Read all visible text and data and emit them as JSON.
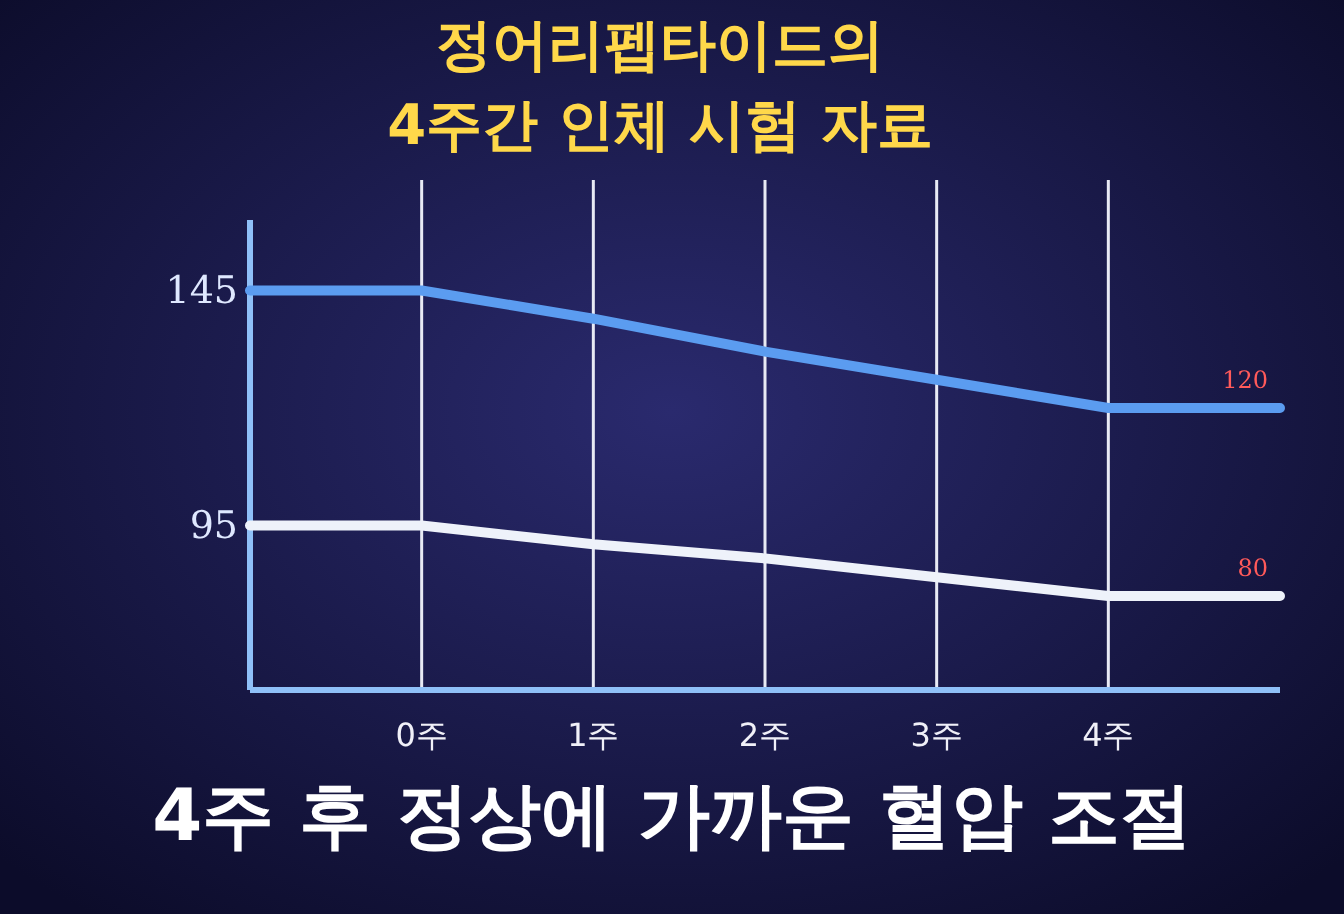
{
  "chart_data": {
    "type": "line",
    "title": "정어리펩타이드의\n4주간 인체 시험 자료",
    "categories": [
      null,
      "0주",
      "1주",
      "2주",
      "3주",
      "4주",
      null
    ],
    "series": [
      {
        "color": "#5b9cf0",
        "values": [
          145,
          145,
          139,
          132,
          126,
          120,
          120
        ],
        "value_labels": [
          "145",
          null,
          null,
          null,
          null,
          null,
          "120"
        ]
      },
      {
        "color": "#eef2fa",
        "values": [
          95,
          95,
          91,
          88,
          84,
          80,
          80
        ],
        "value_labels": [
          "95",
          null,
          null,
          null,
          null,
          null,
          "80"
        ]
      }
    ],
    "ylim": [
      60,
      160
    ],
    "grid": "x",
    "marker": "none",
    "line_style": "solid",
    "annotations": [
      "4주 후 정상에 가까운 혈압 조절"
    ]
  }
}
